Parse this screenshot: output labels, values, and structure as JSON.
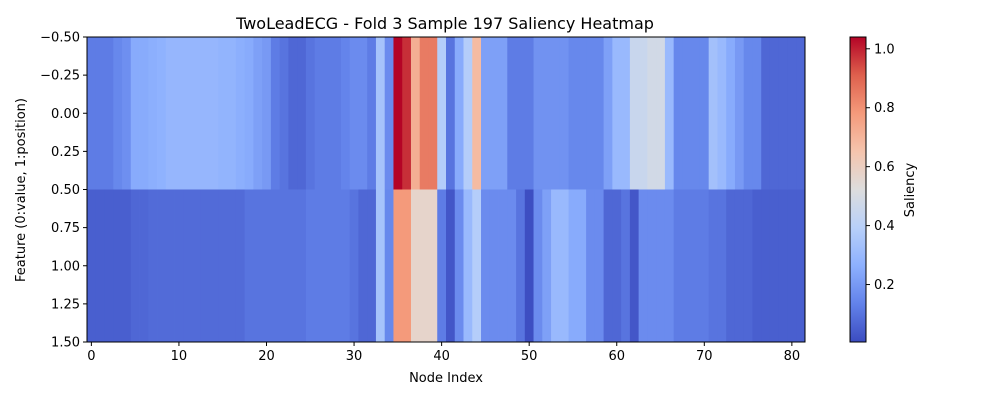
{
  "chart_data": {
    "type": "heatmap",
    "title": "TwoLeadECG - Fold 3 Sample 197 Saliency Heatmap",
    "xlabel": "Node Index",
    "ylabel": "Feature (0:value, 1:position)",
    "colorbar_label": "Saliency",
    "colormap": "coolwarm",
    "vmin": 0.005,
    "vmax": 1.04,
    "n_cols": 82,
    "x_ticks": [
      0,
      10,
      20,
      30,
      40,
      50,
      60,
      70,
      80
    ],
    "x_tick_labels": [
      "0",
      "10",
      "20",
      "30",
      "40",
      "50",
      "60",
      "70",
      "80"
    ],
    "y_range": [
      -0.5,
      1.5
    ],
    "y_ticks": [
      -0.5,
      -0.25,
      0.0,
      0.25,
      0.5,
      0.75,
      1.0,
      1.25,
      1.5
    ],
    "y_tick_labels": [
      "−0.50",
      "−0.25",
      "0.00",
      "0.25",
      "0.50",
      "0.75",
      "1.00",
      "1.25",
      "1.50"
    ],
    "colorbar_ticks": [
      0.2,
      0.4,
      0.6,
      0.8,
      1.0
    ],
    "colorbar_tick_labels": [
      "0.2",
      "0.4",
      "0.6",
      "0.8",
      "1.0"
    ],
    "rows": [
      {
        "feature": "value",
        "values": [
          0.12,
          0.12,
          0.12,
          0.15,
          0.17,
          0.25,
          0.25,
          0.26,
          0.27,
          0.29,
          0.29,
          0.29,
          0.29,
          0.29,
          0.29,
          0.28,
          0.28,
          0.26,
          0.25,
          0.22,
          0.2,
          0.12,
          0.1,
          0.07,
          0.07,
          0.1,
          0.12,
          0.12,
          0.12,
          0.14,
          0.16,
          0.16,
          0.12,
          0.34,
          0.16,
          1.04,
          0.98,
          0.72,
          0.85,
          0.85,
          0.38,
          0.1,
          0.25,
          0.38,
          0.68,
          0.22,
          0.22,
          0.22,
          0.12,
          0.12,
          0.12,
          0.18,
          0.18,
          0.18,
          0.18,
          0.15,
          0.15,
          0.15,
          0.15,
          0.22,
          0.3,
          0.3,
          0.45,
          0.45,
          0.48,
          0.48,
          0.3,
          0.15,
          0.15,
          0.15,
          0.15,
          0.33,
          0.3,
          0.25,
          0.2,
          0.15,
          0.15,
          0.07,
          0.07,
          0.07,
          0.07,
          0.07
        ]
      },
      {
        "feature": "position",
        "values": [
          0.05,
          0.05,
          0.05,
          0.05,
          0.05,
          0.07,
          0.07,
          0.08,
          0.08,
          0.08,
          0.08,
          0.08,
          0.08,
          0.08,
          0.08,
          0.08,
          0.08,
          0.08,
          0.1,
          0.1,
          0.1,
          0.1,
          0.1,
          0.1,
          0.1,
          0.12,
          0.12,
          0.12,
          0.12,
          0.12,
          0.1,
          0.07,
          0.07,
          0.34,
          0.15,
          0.78,
          0.78,
          0.57,
          0.57,
          0.57,
          0.12,
          0.03,
          0.16,
          0.3,
          0.38,
          0.16,
          0.16,
          0.16,
          0.16,
          0.1,
          0.01,
          0.16,
          0.22,
          0.3,
          0.3,
          0.25,
          0.25,
          0.16,
          0.16,
          0.07,
          0.07,
          0.1,
          0.03,
          0.16,
          0.16,
          0.16,
          0.16,
          0.12,
          0.12,
          0.12,
          0.12,
          0.1,
          0.1,
          0.07,
          0.07,
          0.07,
          0.05,
          0.05,
          0.05,
          0.05,
          0.05,
          0.05
        ]
      }
    ]
  }
}
